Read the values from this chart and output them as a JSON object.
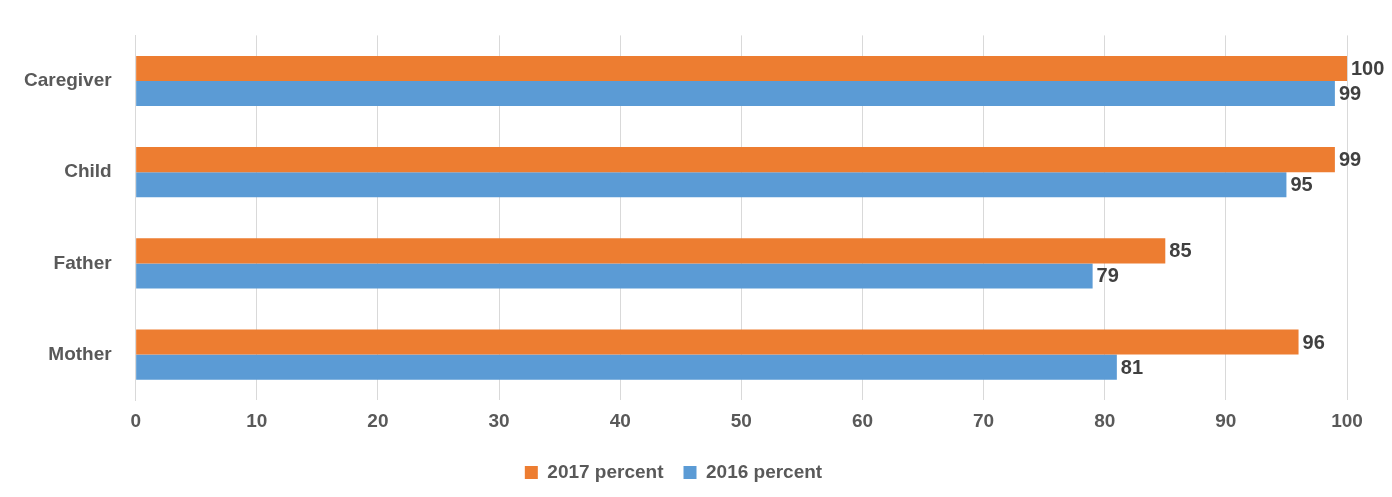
{
  "chart_data": {
    "type": "bar",
    "orientation": "horizontal",
    "categories": [
      "Caregiver",
      "Child",
      "Father",
      "Mother"
    ],
    "series": [
      {
        "name": "2017 percent",
        "color": "#ed7d31",
        "values": [
          100,
          99,
          85,
          96
        ]
      },
      {
        "name": "2016 percent",
        "color": "#5b9bd5",
        "values": [
          99,
          95,
          79,
          81
        ]
      }
    ],
    "xlim": [
      0,
      100
    ],
    "xticks": [
      0,
      10,
      20,
      30,
      40,
      50,
      60,
      70,
      80,
      90,
      100
    ],
    "grid": "x",
    "legend": "bottom",
    "data_labels": true
  }
}
